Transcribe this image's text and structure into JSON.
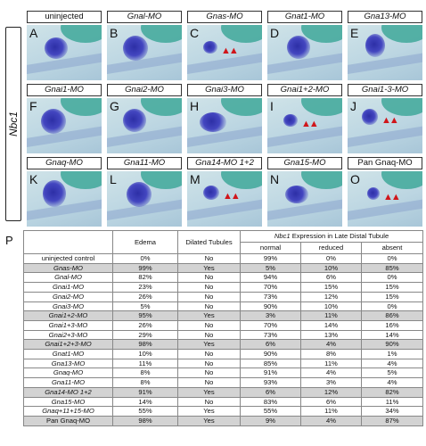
{
  "side_label": "Nbc1",
  "panel_label": "P",
  "panels": [
    {
      "letter": "A",
      "title": "uninjected",
      "italic": false,
      "arrows": ""
    },
    {
      "letter": "B",
      "title": "Gnal-MO",
      "italic": true,
      "arrows": ""
    },
    {
      "letter": "C",
      "title": "Gnas-MO",
      "italic": true,
      "arrows": "▲▲"
    },
    {
      "letter": "D",
      "title": "Gnat1-MO",
      "italic": true,
      "arrows": ""
    },
    {
      "letter": "E",
      "title": "Gna13-MO",
      "italic": true,
      "arrows": ""
    },
    {
      "letter": "F",
      "title": "Gnai1-MO",
      "italic": true,
      "arrows": ""
    },
    {
      "letter": "G",
      "title": "Gnai2-MO",
      "italic": true,
      "arrows": ""
    },
    {
      "letter": "H",
      "title": "Gnai3-MO",
      "italic": true,
      "arrows": ""
    },
    {
      "letter": "I",
      "title": "Gnai1+2-MO",
      "italic": true,
      "arrows": "▲▲"
    },
    {
      "letter": "J",
      "title": "Gnai1-3-MO",
      "italic": true,
      "arrows": "▲▲"
    },
    {
      "letter": "K",
      "title": "Gnaq-MO",
      "italic": true,
      "arrows": ""
    },
    {
      "letter": "L",
      "title": "Gna11-MO",
      "italic": true,
      "arrows": ""
    },
    {
      "letter": "M",
      "title": "Gna14-MO 1+2",
      "italic": true,
      "arrows": "▲▲"
    },
    {
      "letter": "N",
      "title": "Gna15-MO",
      "italic": true,
      "arrows": ""
    },
    {
      "letter": "O",
      "title": "Pan Gnaq-MO",
      "italic": false,
      "arrows": "▲▲"
    }
  ],
  "table": {
    "headers": {
      "edema": "Edema",
      "dilated": "Dilated Tubules",
      "expr_gene": "Nbc1",
      "expr_rest": " Expression in Late Distal Tubule",
      "normal": "normal",
      "reduced": "reduced",
      "absent": "absent"
    },
    "rows": [
      {
        "name": "uninjected control",
        "italic": false,
        "hl": false,
        "edema": "0%",
        "dilated": "No",
        "normal": "99%",
        "reduced": "0%",
        "absent": "0%"
      },
      {
        "name": "Gnas-MO",
        "italic": true,
        "hl": true,
        "edema": "99%",
        "dilated": "Yes",
        "normal": "5%",
        "reduced": "10%",
        "absent": "85%"
      },
      {
        "name": "Gnal-MO",
        "italic": true,
        "hl": false,
        "edema": "82%",
        "dilated": "No",
        "normal": "94%",
        "reduced": "6%",
        "absent": "0%"
      },
      {
        "name": "Gnai1-MO",
        "italic": true,
        "hl": false,
        "edema": "23%",
        "dilated": "No",
        "normal": "70%",
        "reduced": "15%",
        "absent": "15%"
      },
      {
        "name": "Gnai2-MO",
        "italic": true,
        "hl": false,
        "edema": "26%",
        "dilated": "No",
        "normal": "73%",
        "reduced": "12%",
        "absent": "15%"
      },
      {
        "name": "Gnai3-MO",
        "italic": true,
        "hl": false,
        "edema": "5%",
        "dilated": "No",
        "normal": "90%",
        "reduced": "10%",
        "absent": "0%"
      },
      {
        "name": "Gnai1+2-MO",
        "italic": true,
        "hl": true,
        "edema": "95%",
        "dilated": "Yes",
        "normal": "3%",
        "reduced": "11%",
        "absent": "86%"
      },
      {
        "name": "Gnai1+3-MO",
        "italic": true,
        "hl": false,
        "edema": "26%",
        "dilated": "No",
        "normal": "70%",
        "reduced": "14%",
        "absent": "16%"
      },
      {
        "name": "Gnai2+3-MO",
        "italic": true,
        "hl": false,
        "edema": "29%",
        "dilated": "No",
        "normal": "73%",
        "reduced": "13%",
        "absent": "14%"
      },
      {
        "name": "Gnai1+2+3-MO",
        "italic": true,
        "hl": true,
        "edema": "98%",
        "dilated": "Yes",
        "normal": "6%",
        "reduced": "4%",
        "absent": "90%"
      },
      {
        "name": "Gnat1-MO",
        "italic": true,
        "hl": false,
        "edema": "10%",
        "dilated": "No",
        "normal": "90%",
        "reduced": "8%",
        "absent": "1%"
      },
      {
        "name": "Gna13-MO",
        "italic": true,
        "hl": false,
        "edema": "11%",
        "dilated": "No",
        "normal": "85%",
        "reduced": "11%",
        "absent": "4%"
      },
      {
        "name": "Gnaq-MO",
        "italic": true,
        "hl": false,
        "edema": "8%",
        "dilated": "No",
        "normal": "91%",
        "reduced": "4%",
        "absent": "5%"
      },
      {
        "name": "Gna11-MO",
        "italic": true,
        "hl": false,
        "edema": "8%",
        "dilated": "No",
        "normal": "93%",
        "reduced": "3%",
        "absent": "4%"
      },
      {
        "name": "Gna14-MO 1+2",
        "italic": true,
        "hl": true,
        "edema": "91%",
        "dilated": "Yes",
        "normal": "6%",
        "reduced": "12%",
        "absent": "82%"
      },
      {
        "name": "Gna15-MO",
        "italic": true,
        "hl": false,
        "edema": "14%",
        "dilated": "No",
        "normal": "83%",
        "reduced": "6%",
        "absent": "11%"
      },
      {
        "name": "Gnaq+11+15-MO",
        "italic": true,
        "hl": false,
        "edema": "55%",
        "dilated": "Yes",
        "normal": "55%",
        "reduced": "11%",
        "absent": "34%"
      },
      {
        "name": "Pan Gnaq-MO",
        "italic": false,
        "hl": true,
        "edema": "98%",
        "dilated": "Yes",
        "normal": "9%",
        "reduced": "4%",
        "absent": "87%"
      }
    ]
  }
}
